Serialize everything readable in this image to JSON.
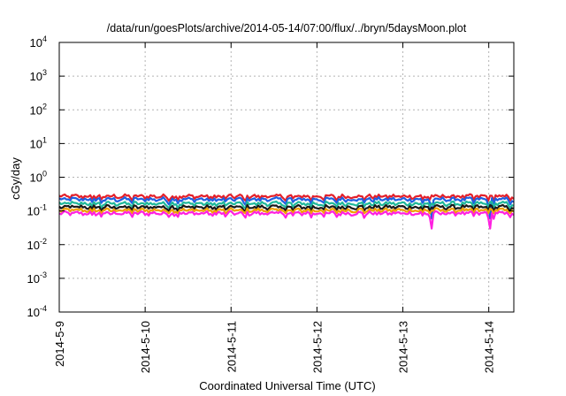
{
  "chart_data": {
    "type": "line",
    "title": "/data/run/goesPlots/archive/2014-05-14/07:00/flux/../bryn/5daysMoon.plot",
    "xlabel": "Coordinated Universal Time (UTC)",
    "ylabel": "cGy/day",
    "x_tick_labels": [
      "2014-5-9",
      "2014-5-10",
      "2014-5-11",
      "2014-5-12",
      "2014-5-13",
      "2014-5-14"
    ],
    "x_range": [
      "2014-05-09",
      "2014-05-14 07:00"
    ],
    "y_scale": "log",
    "ylim": [
      0.0001,
      10000
    ],
    "y_tick_labels": [
      {
        "base": "10",
        "exp": "4"
      },
      {
        "base": "10",
        "exp": "3"
      },
      {
        "base": "10",
        "exp": "2"
      },
      {
        "base": "10",
        "exp": "1"
      },
      {
        "base": "10",
        "exp": "0"
      },
      {
        "base": "10",
        "exp": "-1"
      },
      {
        "base": "10",
        "exp": "-2"
      },
      {
        "base": "10",
        "exp": "-3"
      },
      {
        "base": "10",
        "exp": "-4"
      }
    ],
    "grid": true,
    "legend": "none",
    "series": [
      {
        "color": "#e4202a",
        "typical_value": 0.27,
        "min": 0.2,
        "max": 0.34
      },
      {
        "color": "#1f5fe0",
        "typical_value": 0.22,
        "min": 0.06,
        "max": 0.29
      },
      {
        "color": "#1fb89a",
        "typical_value": 0.165,
        "min": 0.12,
        "max": 0.19
      },
      {
        "color": "#1a1a1a",
        "typical_value": 0.13,
        "min": 0.1,
        "max": 0.15
      },
      {
        "color": "#f0a000",
        "typical_value": 0.105,
        "min": 0.085,
        "max": 0.12
      },
      {
        "color": "#ff20e0",
        "typical_value": 0.085,
        "min": 0.03,
        "max": 0.1
      }
    ]
  }
}
